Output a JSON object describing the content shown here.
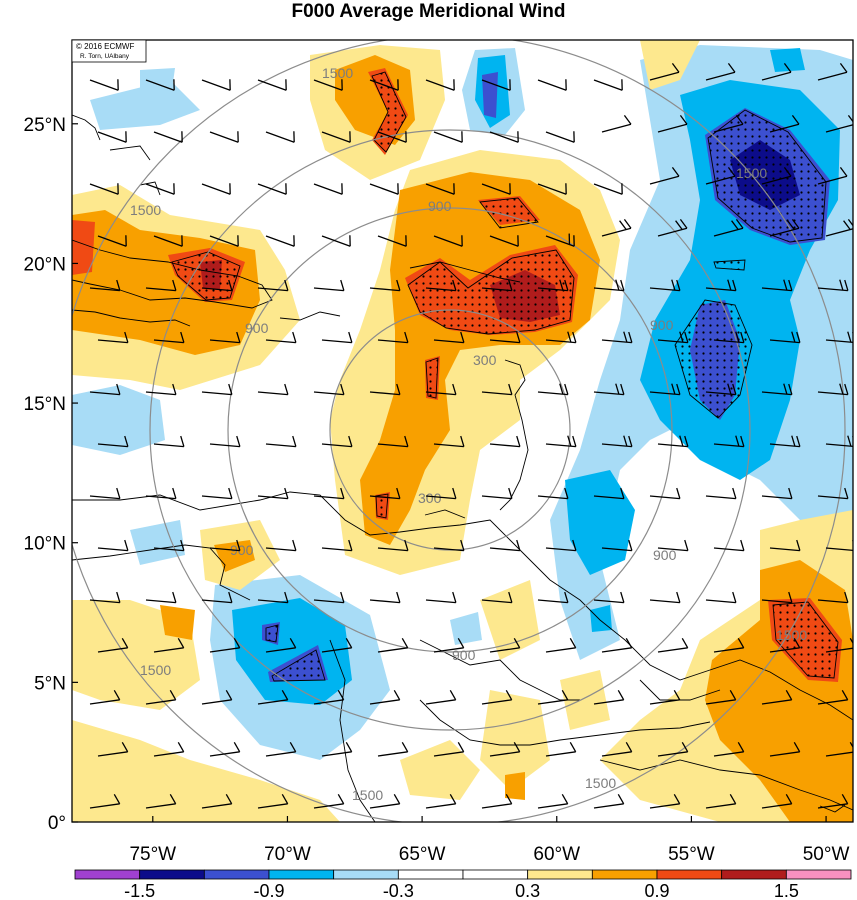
{
  "title": "F000 Average Meridional Wind",
  "credit": {
    "line1": "© 2016 ECMWF",
    "line2": "R. Torn, UAlbany"
  },
  "map": {
    "lon_range": [
      -78,
      -49
    ],
    "lat_range": [
      0,
      28
    ],
    "x_ticks": [
      {
        "lon": -75,
        "label": "75°W"
      },
      {
        "lon": -70,
        "label": "70°W"
      },
      {
        "lon": -65,
        "label": "65°W"
      },
      {
        "lon": -60,
        "label": "60°W"
      },
      {
        "lon": -55,
        "label": "55°W"
      },
      {
        "lon": -50,
        "label": "50°W"
      }
    ],
    "y_ticks": [
      {
        "lat": 0,
        "label": "0°"
      },
      {
        "lat": 5,
        "label": "5°N"
      },
      {
        "lat": 10,
        "label": "10°N"
      },
      {
        "lat": 15,
        "label": "15°N"
      },
      {
        "lat": 20,
        "label": "20°N"
      },
      {
        "lat": 25,
        "label": "25°N"
      }
    ],
    "range_rings": [
      "300",
      "900",
      "1500"
    ]
  },
  "colorbar": {
    "colors": [
      "#a040d0",
      "#0c0c8a",
      "#3c50d0",
      "#00b4f0",
      "#a8dcf6",
      "#ffffff",
      "#ffffff",
      "#fde88e",
      "#f8a000",
      "#f04a14",
      "#b01c1c",
      "#f890c0"
    ],
    "labels": [
      {
        "after": 1,
        "text": "-1.5"
      },
      {
        "after": 3,
        "text": "-0.9"
      },
      {
        "after": 5,
        "text": "-0.3"
      },
      {
        "after": 7,
        "text": "0.3"
      },
      {
        "after": 9,
        "text": "0.9"
      },
      {
        "after": 11,
        "text": "1.5"
      }
    ]
  }
}
